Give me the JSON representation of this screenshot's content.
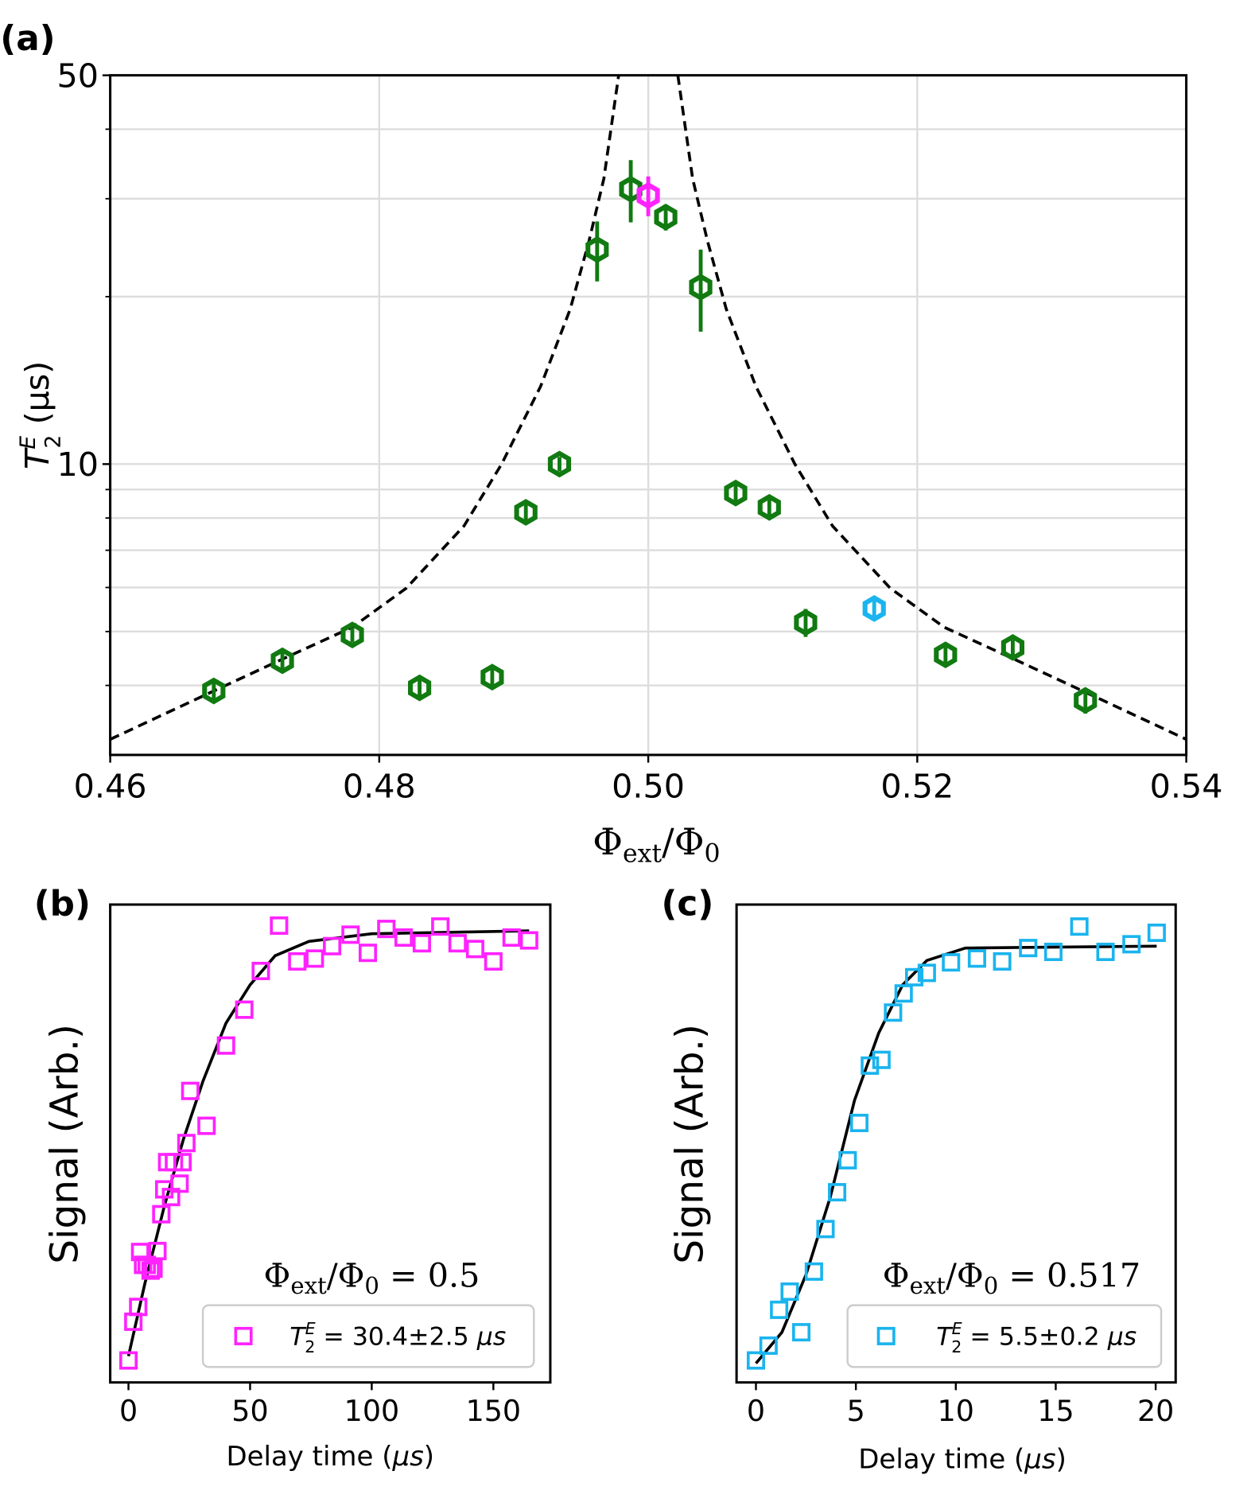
{
  "chart_data": [
    {
      "type": "scatter",
      "panel_label": "(a)",
      "ylabel": [
        "T",
        "E",
        "2",
        " (μs)"
      ],
      "xlabel": [
        "Φ",
        "ext",
        "/Φ",
        "0"
      ],
      "xlim": [
        0.46,
        0.54
      ],
      "xticks": [
        0.46,
        0.48,
        {
          "value": 0.5,
          "label": "0.50"
        },
        0.52,
        0.54
      ],
      "ylim": [
        3,
        50
      ],
      "yticks": [
        10,
        50
      ],
      "yminor": [
        4,
        5,
        6,
        7,
        8,
        9,
        20,
        30,
        40
      ],
      "log_y": true,
      "grid": true,
      "series": [
        {
          "color": "#117a11",
          "x": [
            0.4677,
            0.4728,
            0.478,
            0.483,
            0.4884,
            0.4909,
            0.4934,
            0.4962,
            0.4987,
            0.5013,
            0.5039,
            0.5065,
            0.509,
            0.5117,
            0.5221,
            0.5271,
            0.5325
          ],
          "values": [
            3.91,
            4.43,
            4.93,
            3.96,
            4.14,
            8.19,
            10,
            24.3,
            31.2,
            27.8,
            20.8,
            8.87,
            8.36,
            5.19,
            4.54,
            4.68,
            3.76
          ],
          "yerr": [
            0.15,
            0.15,
            0.15,
            0.15,
            0.15,
            0.3,
            0.3,
            3,
            4,
            1.5,
            3.5,
            0.3,
            0.3,
            0.3,
            0.15,
            0.15,
            0.2
          ]
        },
        {
          "color": "#ff22ff",
          "x": [
            0.5
          ],
          "values": [
            30.4
          ],
          "yerr": [
            2.5
          ]
        },
        {
          "color": "#1ab4ee",
          "x": [
            0.5168
          ],
          "values": [
            5.5
          ],
          "yerr": [
            0.2
          ]
        }
      ],
      "fit": {
        "x": [
          0.46,
          0.4677,
          0.4728,
          0.478,
          0.482,
          0.4863,
          0.4891,
          0.492,
          0.4942,
          0.4956,
          0.4967,
          0.4978,
          null,
          0.5022,
          0.5033,
          0.5044,
          0.5058,
          0.508,
          0.5109,
          0.5137,
          0.518,
          0.522,
          0.5272,
          0.5323,
          0.54
        ],
        "y": [
          3.2,
          3.91,
          4.46,
          5.09,
          5.98,
          7.74,
          10,
          13.8,
          19,
          25.2,
          32.6,
          50,
          null,
          50,
          32.6,
          25.2,
          19,
          13.8,
          10,
          7.74,
          5.98,
          5.09,
          4.46,
          3.91,
          3.2
        ],
        "color": "#000",
        "dashed": true
      }
    },
    {
      "type": "scatter",
      "panel_label": "(b)",
      "ylabel": "Signal (Arb.)",
      "xlabel": [
        "Delay time (",
        "μs",
        ")"
      ],
      "xlim": [
        -7.5,
        173.4
      ],
      "xticks": [
        0,
        50,
        100,
        150
      ],
      "ylim": [
        0,
        1
      ],
      "annotation": [
        "Φ",
        "ext",
        "/Φ",
        "0",
        " = 0.5"
      ],
      "series": [
        {
          "name": [
            "T",
            "E",
            "2",
            " = 30.4±2.5 ",
            "μs"
          ],
          "color": "#ff22ff",
          "x": [
            0,
            2,
            4,
            4.8,
            6,
            7.5,
            9.1,
            10.3,
            11.9,
            13.5,
            14.7,
            15.9,
            17.5,
            18.7,
            21,
            22.2,
            23.8,
            25.4,
            32.1,
            40.1,
            47.6,
            54.4,
            61.9,
            69.4,
            76.6,
            83.7,
            91.3,
            98.4,
            106,
            113.1,
            120.6,
            128.2,
            135.3,
            142.5,
            150,
            157.5,
            164.7
          ],
          "values": [
            0.046,
            0.127,
            0.158,
            0.273,
            0.246,
            0.246,
            0.234,
            0.238,
            0.275,
            0.352,
            0.404,
            0.461,
            0.388,
            0.461,
            0.416,
            0.461,
            0.501,
            0.61,
            0.537,
            0.705,
            0.78,
            0.861,
            0.956,
            0.881,
            0.887,
            0.913,
            0.937,
            0.899,
            0.949,
            0.931,
            0.919,
            0.954,
            0.919,
            0.907,
            0.881,
            0.931,
            0.925
          ]
        }
      ],
      "fit": {
        "x": [
          0,
          6.7,
          14.7,
          22.6,
          30.6,
          40.1,
          50,
          60.3,
          74.2,
          100,
          164.7
        ],
        "y": [
          0.055,
          0.206,
          0.368,
          0.509,
          0.63,
          0.752,
          0.832,
          0.893,
          0.923,
          0.939,
          0.945
        ],
        "color": "#000"
      }
    },
    {
      "type": "scatter",
      "panel_label": "(c)",
      "ylabel": "Signal (Arb.)",
      "xlabel": [
        "Delay time (",
        "μs",
        ")"
      ],
      "xlim": [
        -0.97,
        21
      ],
      "xticks": [
        0,
        5,
        10,
        15,
        20
      ],
      "ylim": [
        0,
        1
      ],
      "annotation": [
        "Φ",
        "ext",
        "/Φ",
        "0",
        " = 0.517"
      ],
      "series": [
        {
          "name": [
            "T",
            "E",
            "2",
            " = 5.5±0.2 ",
            "μs"
          ],
          "color": "#1ab4ee",
          "x": [
            0,
            0.63,
            1.16,
            1.69,
            2.27,
            2.9,
            3.48,
            4.06,
            4.59,
            5.17,
            5.7,
            6.28,
            6.86,
            7.39,
            7.92,
            8.55,
            9.76,
            11.06,
            12.32,
            13.62,
            14.88,
            16.18,
            17.49,
            18.79,
            20.05
          ],
          "values": [
            0.046,
            0.077,
            0.152,
            0.19,
            0.105,
            0.232,
            0.321,
            0.398,
            0.465,
            0.543,
            0.663,
            0.675,
            0.774,
            0.814,
            0.848,
            0.857,
            0.879,
            0.887,
            0.881,
            0.909,
            0.901,
            0.954,
            0.901,
            0.917,
            0.941
          ]
        }
      ],
      "fit": {
        "x": [
          0,
          1.3,
          2.51,
          3.72,
          4.93,
          6.14,
          7.34,
          8.55,
          10.48,
          20.05
        ],
        "y": [
          0.04,
          0.105,
          0.226,
          0.388,
          0.59,
          0.731,
          0.832,
          0.883,
          0.909,
          0.913
        ],
        "color": "#000"
      }
    }
  ]
}
